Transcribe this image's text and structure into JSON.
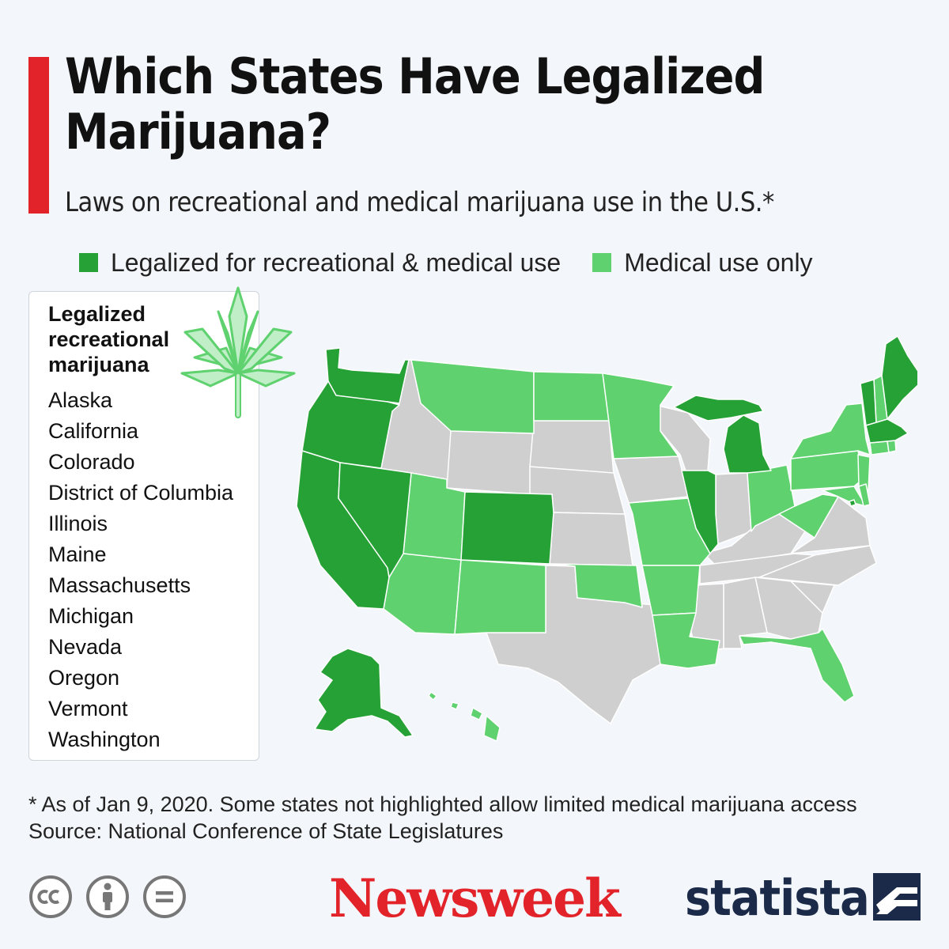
{
  "header": {
    "title": "Which States Have Legalized Marijuana?",
    "subtitle": "Laws on recreational and medical marijuana use in the U.S.*"
  },
  "legend": {
    "items": [
      {
        "label": "Legalized for recreational & medical use",
        "color": "#26a136"
      },
      {
        "label": "Medical use only",
        "color": "#5fd16f"
      }
    ]
  },
  "status_colors": {
    "recreational": "#26a136",
    "medical": "#5fd16f",
    "other": "#cfcfcf"
  },
  "recreational_panel": {
    "heading": "Legalized recreational marijuana",
    "states": [
      "Alaska",
      "California",
      "Colorado",
      "District of Columbia",
      "Illinois",
      "Maine",
      "Massachusetts",
      "Michigan",
      "Nevada",
      "Oregon",
      "Vermont",
      "Washington"
    ],
    "icon": "cannabis-leaf-icon"
  },
  "map_states": {
    "recreational": [
      "Alaska",
      "California",
      "Colorado",
      "District of Columbia",
      "Illinois",
      "Maine",
      "Massachusetts",
      "Michigan",
      "Nevada",
      "Oregon",
      "Vermont",
      "Washington"
    ],
    "medical": [
      "Arizona",
      "Arkansas",
      "Connecticut",
      "Delaware",
      "Florida",
      "Hawaii",
      "Louisiana",
      "Maryland",
      "Minnesota",
      "Missouri",
      "Montana",
      "New Hampshire",
      "New Jersey",
      "New Mexico",
      "New York",
      "North Dakota",
      "Ohio",
      "Oklahoma",
      "Pennsylvania",
      "Rhode Island",
      "Utah",
      "West Virginia"
    ]
  },
  "footnote": {
    "note": "* As of Jan 9, 2020. Some states not highlighted allow limited medical marijuana access",
    "source": "Source: National Conference of State Legislatures"
  },
  "branding": {
    "license_icons": [
      "cc-icon",
      "attribution-icon",
      "no-derivatives-icon"
    ],
    "newsweek": "Newsweek",
    "statista": "statista"
  }
}
